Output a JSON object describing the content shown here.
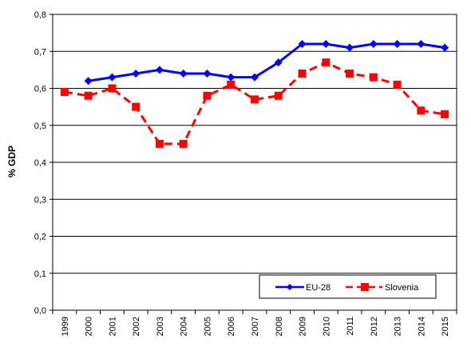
{
  "chart_data": {
    "type": "line",
    "title": "",
    "xlabel": "",
    "ylabel": "% GDP",
    "categories": [
      "1999",
      "2000",
      "2001",
      "2002",
      "2003",
      "2004",
      "2005",
      "2006",
      "2007",
      "2008",
      "2009",
      "2010",
      "2011",
      "2012",
      "2013",
      "2014",
      "2015"
    ],
    "ylim": [
      0,
      0.8
    ],
    "yticks": [
      "0,0",
      "0,1",
      "0,2",
      "0,3",
      "0,4",
      "0,5",
      "0,6",
      "0,7",
      "0,8"
    ],
    "grid": "horizontal",
    "legend_position": "bottom-right",
    "series": [
      {
        "name": "EU-28",
        "color": "#0000ff",
        "style": "solid",
        "marker": "diamond",
        "values": [
          null,
          0.62,
          0.63,
          0.64,
          0.65,
          0.64,
          0.64,
          0.63,
          0.63,
          0.67,
          0.72,
          0.72,
          0.71,
          0.72,
          0.72,
          0.72,
          0.71
        ]
      },
      {
        "name": "Slovenia",
        "color": "#ff0000",
        "style": "dashed",
        "marker": "square",
        "values": [
          0.59,
          0.58,
          0.6,
          0.55,
          0.45,
          0.45,
          0.58,
          0.61,
          0.57,
          0.58,
          0.64,
          0.67,
          0.64,
          0.63,
          0.61,
          0.54,
          0.53
        ]
      }
    ]
  }
}
